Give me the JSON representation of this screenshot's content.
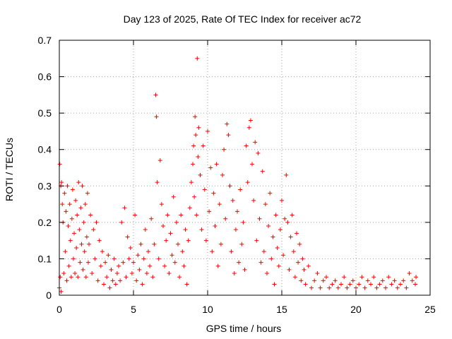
{
  "chart_data": {
    "type": "scatter",
    "title": "Day 123 of 2025, Rate Of TEC Index for receiver ac72",
    "xlabel": "GPS time / hours",
    "ylabel": "ROTI / TECUs",
    "xlim": [
      0,
      25
    ],
    "ylim": [
      0,
      0.7
    ],
    "x_ticks": [
      0,
      5,
      10,
      15,
      20,
      25
    ],
    "x_tick_labels": [
      "0",
      "5",
      "10",
      "15",
      "20",
      "25"
    ],
    "y_ticks": [
      0,
      0.1,
      0.2,
      0.3,
      0.4,
      0.5,
      0.6,
      0.7
    ],
    "y_tick_labels": [
      "0",
      "0.1",
      "0.2",
      "0.3",
      "0.4",
      "0.5",
      "0.6",
      "0.7"
    ],
    "grid": true,
    "marker": "plus",
    "series": [
      {
        "color": "#ff0000",
        "points": [
          [
            0.0,
            0.02
          ],
          [
            0.03,
            0.36
          ],
          [
            0.06,
            0.05
          ],
          [
            0.1,
            0.3
          ],
          [
            0.12,
            0.01
          ],
          [
            0.15,
            0.31
          ],
          [
            0.2,
            0.25
          ],
          [
            0.25,
            0.2
          ],
          [
            0.3,
            0.06
          ],
          [
            0.35,
            0.28
          ],
          [
            0.4,
            0.12
          ],
          [
            0.45,
            0.23
          ],
          [
            0.5,
            0.04
          ],
          [
            0.55,
            0.3
          ],
          [
            0.6,
            0.19
          ],
          [
            0.65,
            0.08
          ],
          [
            0.7,
            0.25
          ],
          [
            0.75,
            0.15
          ],
          [
            0.8,
            0.05
          ],
          [
            0.85,
            0.21
          ],
          [
            0.9,
            0.29
          ],
          [
            0.95,
            0.1
          ],
          [
            1.0,
            0.17
          ],
          [
            1.05,
            0.06
          ],
          [
            1.1,
            0.26
          ],
          [
            1.15,
            0.13
          ],
          [
            1.2,
            0.22
          ],
          [
            1.25,
            0.05
          ],
          [
            1.3,
            0.31
          ],
          [
            1.35,
            0.18
          ],
          [
            1.4,
            0.09
          ],
          [
            1.45,
            0.24
          ],
          [
            1.5,
            0.14
          ],
          [
            1.55,
            0.3
          ],
          [
            1.6,
            0.07
          ],
          [
            1.65,
            0.2
          ],
          [
            1.7,
            0.12
          ],
          [
            1.75,
            0.25
          ],
          [
            1.8,
            0.05
          ],
          [
            1.85,
            0.16
          ],
          [
            1.9,
            0.28
          ],
          [
            1.95,
            0.09
          ],
          [
            2.0,
            0.14
          ],
          [
            2.1,
            0.22
          ],
          [
            2.2,
            0.06
          ],
          [
            2.3,
            0.18
          ],
          [
            2.4,
            0.1
          ],
          [
            2.5,
            0.2
          ],
          [
            2.6,
            0.04
          ],
          [
            2.7,
            0.15
          ],
          [
            2.8,
            0.08
          ],
          [
            2.9,
            0.12
          ],
          [
            3.0,
            0.03
          ],
          [
            3.1,
            0.09
          ],
          [
            3.2,
            0.05
          ],
          [
            3.3,
            0.11
          ],
          [
            3.4,
            0.02
          ],
          [
            3.5,
            0.07
          ],
          [
            3.6,
            0.04
          ],
          [
            3.7,
            0.1
          ],
          [
            3.8,
            0.03
          ],
          [
            3.9,
            0.06
          ],
          [
            4.0,
            0.08
          ],
          [
            4.1,
            0.04
          ],
          [
            4.2,
            0.2
          ],
          [
            4.3,
            0.09
          ],
          [
            4.4,
            0.24
          ],
          [
            4.5,
            0.05
          ],
          [
            4.6,
            0.16
          ],
          [
            4.7,
            0.1
          ],
          [
            4.8,
            0.13
          ],
          [
            4.9,
            0.06
          ],
          [
            5.0,
            0.09
          ],
          [
            5.1,
            0.22
          ],
          [
            5.2,
            0.04
          ],
          [
            5.3,
            0.11
          ],
          [
            5.4,
            0.07
          ],
          [
            5.5,
            0.14
          ],
          [
            5.6,
            0.03
          ],
          [
            5.7,
            0.1
          ],
          [
            5.8,
            0.18
          ],
          [
            5.9,
            0.06
          ],
          [
            6.0,
            0.12
          ],
          [
            6.1,
            0.08
          ],
          [
            6.2,
            0.21
          ],
          [
            6.3,
            0.05
          ],
          [
            6.4,
            0.14
          ],
          [
            6.5,
            0.55
          ],
          [
            6.55,
            0.49
          ],
          [
            6.6,
            0.31
          ],
          [
            6.7,
            0.1
          ],
          [
            6.8,
            0.37
          ],
          [
            6.9,
            0.25
          ],
          [
            7.0,
            0.19
          ],
          [
            7.1,
            0.08
          ],
          [
            7.2,
            0.15
          ],
          [
            7.3,
            0.22
          ],
          [
            7.4,
            0.06
          ],
          [
            7.5,
            0.17
          ],
          [
            7.6,
            0.11
          ],
          [
            7.7,
            0.27
          ],
          [
            7.8,
            0.09
          ],
          [
            7.9,
            0.2
          ],
          [
            8.0,
            0.14
          ],
          [
            8.1,
            0.05
          ],
          [
            8.2,
            0.22
          ],
          [
            8.3,
            0.12
          ],
          [
            8.4,
            0.08
          ],
          [
            8.5,
            0.18
          ],
          [
            8.6,
            0.03
          ],
          [
            8.7,
            0.15
          ],
          [
            8.8,
            0.24
          ],
          [
            8.9,
            0.31
          ],
          [
            9.0,
            0.36
          ],
          [
            9.05,
            0.41
          ],
          [
            9.1,
            0.27
          ],
          [
            9.15,
            0.49
          ],
          [
            9.2,
            0.44
          ],
          [
            9.25,
            0.22
          ],
          [
            9.3,
            0.65
          ],
          [
            9.35,
            0.38
          ],
          [
            9.4,
            0.46
          ],
          [
            9.5,
            0.33
          ],
          [
            9.6,
            0.18
          ],
          [
            9.7,
            0.41
          ],
          [
            9.8,
            0.29
          ],
          [
            9.9,
            0.15
          ],
          [
            10.0,
            0.45
          ],
          [
            10.1,
            0.23
          ],
          [
            10.2,
            0.35
          ],
          [
            10.3,
            0.12
          ],
          [
            10.4,
            0.28
          ],
          [
            10.5,
            0.19
          ],
          [
            10.6,
            0.36
          ],
          [
            10.7,
            0.08
          ],
          [
            10.8,
            0.25
          ],
          [
            10.9,
            0.14
          ],
          [
            11.0,
            0.33
          ],
          [
            11.1,
            0.4
          ],
          [
            11.2,
            0.21
          ],
          [
            11.3,
            0.47
          ],
          [
            11.4,
            0.44
          ],
          [
            11.5,
            0.3
          ],
          [
            11.6,
            0.12
          ],
          [
            11.7,
            0.26
          ],
          [
            11.8,
            0.06
          ],
          [
            11.9,
            0.18
          ],
          [
            12.0,
            0.23
          ],
          [
            12.1,
            0.09
          ],
          [
            12.2,
            0.29
          ],
          [
            12.3,
            0.14
          ],
          [
            12.4,
            0.2
          ],
          [
            12.5,
            0.07
          ],
          [
            12.6,
            0.41
          ],
          [
            12.7,
            0.31
          ],
          [
            12.8,
            0.46
          ],
          [
            12.9,
            0.48
          ],
          [
            13.0,
            0.36
          ],
          [
            13.1,
            0.26
          ],
          [
            13.2,
            0.42
          ],
          [
            13.3,
            0.15
          ],
          [
            13.4,
            0.39
          ],
          [
            13.5,
            0.21
          ],
          [
            13.6,
            0.09
          ],
          [
            13.7,
            0.34
          ],
          [
            13.8,
            0.12
          ],
          [
            13.9,
            0.25
          ],
          [
            14.0,
            0.06
          ],
          [
            14.1,
            0.19
          ],
          [
            14.2,
            0.28
          ],
          [
            14.3,
            0.1
          ],
          [
            14.4,
            0.16
          ],
          [
            14.5,
            0.03
          ],
          [
            14.6,
            0.22
          ],
          [
            14.7,
            0.13
          ],
          [
            14.8,
            0.08
          ],
          [
            14.9,
            0.18
          ],
          [
            15.0,
            0.26
          ],
          [
            15.1,
            0.11
          ],
          [
            15.2,
            0.21
          ],
          [
            15.3,
            0.33
          ],
          [
            15.4,
            0.2
          ],
          [
            15.5,
            0.07
          ],
          [
            15.6,
            0.16
          ],
          [
            15.7,
            0.22
          ],
          [
            15.8,
            0.12
          ],
          [
            15.9,
            0.05
          ],
          [
            16.0,
            0.17
          ],
          [
            16.1,
            0.09
          ],
          [
            16.2,
            0.14
          ],
          [
            16.3,
            0.04
          ],
          [
            16.4,
            0.1
          ],
          [
            16.5,
            0.07
          ],
          [
            16.6,
            0.03
          ],
          [
            16.8,
            0.08
          ],
          [
            17.0,
            0.02
          ],
          [
            17.2,
            0.04
          ],
          [
            17.4,
            0.06
          ],
          [
            17.6,
            0.02
          ],
          [
            17.8,
            0.04
          ],
          [
            18.0,
            0.05
          ],
          [
            18.2,
            0.02
          ],
          [
            18.4,
            0.03
          ],
          [
            18.6,
            0.04
          ],
          [
            18.8,
            0.02
          ],
          [
            19.0,
            0.03
          ],
          [
            19.2,
            0.05
          ],
          [
            19.4,
            0.02
          ],
          [
            19.6,
            0.03
          ],
          [
            19.8,
            0.04
          ],
          [
            20.0,
            0.02
          ],
          [
            20.2,
            0.03
          ],
          [
            20.4,
            0.05
          ],
          [
            20.6,
            0.02
          ],
          [
            20.8,
            0.04
          ],
          [
            21.0,
            0.03
          ],
          [
            21.2,
            0.05
          ],
          [
            21.4,
            0.02
          ],
          [
            21.6,
            0.03
          ],
          [
            21.8,
            0.04
          ],
          [
            22.0,
            0.02
          ],
          [
            22.2,
            0.05
          ],
          [
            22.4,
            0.03
          ],
          [
            22.6,
            0.04
          ],
          [
            22.8,
            0.02
          ],
          [
            23.0,
            0.03
          ],
          [
            23.2,
            0.04
          ],
          [
            23.4,
            0.02
          ],
          [
            23.6,
            0.06
          ],
          [
            23.8,
            0.04
          ],
          [
            24.0,
            0.03
          ],
          [
            24.05,
            0.05
          ]
        ]
      }
    ]
  }
}
